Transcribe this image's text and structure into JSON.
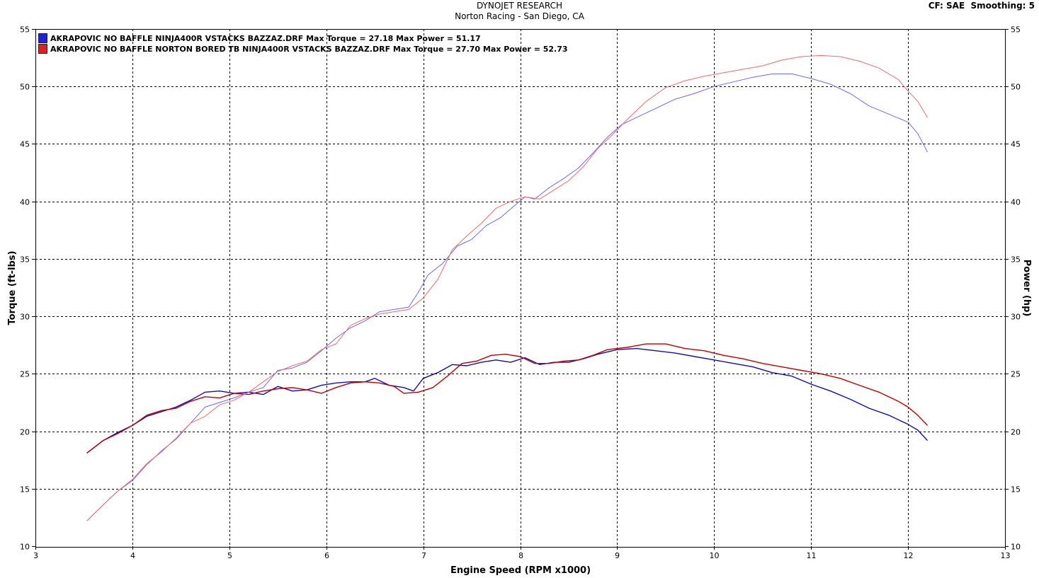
{
  "header": {
    "title": "DYNOJET RESEARCH",
    "subtitle": "Norton Racing - San Diego, CA",
    "settings": "CF: SAE  Smoothing: 5"
  },
  "chart_data": {
    "type": "line",
    "xlabel": "Engine Speed (RPM x1000)",
    "ylabel_left": "Torque (ft-lbs)",
    "ylabel_right": "Power (hp)",
    "xlim": [
      3,
      13
    ],
    "ylim": [
      10,
      55
    ],
    "x_ticks": [
      "3",
      "4",
      "5",
      "6",
      "7",
      "8",
      "9",
      "10",
      "11",
      "12",
      "13"
    ],
    "y_ticks": [
      "10",
      "15",
      "20",
      "25",
      "30",
      "35",
      "40",
      "45",
      "50",
      "55"
    ],
    "grid": true,
    "legend_position": "top-left",
    "legend": [
      {
        "name": "AKRAPOVIC NO BAFFLE NINJA400R VSTACKS BAZZAZ.DRF Max Torque = 27.18 Max Power = 51.17",
        "color": "#2020e0"
      },
      {
        "name": "AKRAPOVIC NO BAFFLE NORTON BORED TB NINJA400R VSTACKS BAZZAZ.DRF Max Torque = 27.70 Max Power = 52.73",
        "color": "#e02020"
      }
    ],
    "series": [
      {
        "name": "AKRAPOVIC NO BAFFLE NINJA400R VSTACKS BAZZAZ.DRF",
        "measure": "Torque",
        "color": "#1010b0",
        "x": [
          3.53,
          3.7,
          3.85,
          4.0,
          4.15,
          4.3,
          4.45,
          4.6,
          4.75,
          4.9,
          5.05,
          5.2,
          5.35,
          5.5,
          5.65,
          5.8,
          5.95,
          6.1,
          6.25,
          6.4,
          6.5,
          6.65,
          6.8,
          6.9,
          7.0,
          7.15,
          7.3,
          7.45,
          7.6,
          7.75,
          7.9,
          8.05,
          8.2,
          8.35,
          8.5,
          8.65,
          8.8,
          9.0,
          9.2,
          9.4,
          9.6,
          9.8,
          10.0,
          10.2,
          10.4,
          10.6,
          10.8,
          11.0,
          11.2,
          11.4,
          11.6,
          11.8,
          12.0,
          12.1,
          12.2
        ],
        "y": [
          18.1,
          19.2,
          19.9,
          20.5,
          21.3,
          21.7,
          22.1,
          22.7,
          23.4,
          23.5,
          23.3,
          23.4,
          23.2,
          23.9,
          23.5,
          23.6,
          24.0,
          24.2,
          24.3,
          24.3,
          24.6,
          24.0,
          23.8,
          23.5,
          24.6,
          25.1,
          25.8,
          25.7,
          26.0,
          26.2,
          26.0,
          26.4,
          25.8,
          26.0,
          26.0,
          26.3,
          26.7,
          27.1,
          27.2,
          27.0,
          26.8,
          26.5,
          26.2,
          25.9,
          25.6,
          25.1,
          24.8,
          24.1,
          23.5,
          22.8,
          22.0,
          21.4,
          20.6,
          20.1,
          19.2
        ]
      },
      {
        "name": "AKRAPOVIC NO BAFFLE NORTON BORED TB NINJA400R VSTACKS BAZZAZ.DRF",
        "measure": "Torque",
        "color": "#c00000",
        "x": [
          3.53,
          3.7,
          3.85,
          4.0,
          4.15,
          4.3,
          4.45,
          4.6,
          4.75,
          4.9,
          5.05,
          5.2,
          5.35,
          5.5,
          5.65,
          5.8,
          5.95,
          6.1,
          6.25,
          6.4,
          6.55,
          6.7,
          6.8,
          6.95,
          7.1,
          7.25,
          7.4,
          7.55,
          7.7,
          7.85,
          8.0,
          8.15,
          8.3,
          8.45,
          8.6,
          8.75,
          8.9,
          9.1,
          9.3,
          9.5,
          9.7,
          9.9,
          10.1,
          10.3,
          10.5,
          10.7,
          10.9,
          11.1,
          11.3,
          11.5,
          11.7,
          11.9,
          12.0,
          12.1,
          12.2
        ],
        "y": [
          18.1,
          19.2,
          19.8,
          20.5,
          21.4,
          21.8,
          22.0,
          22.6,
          23.0,
          22.9,
          23.3,
          23.2,
          23.5,
          23.7,
          23.8,
          23.6,
          23.3,
          23.8,
          24.2,
          24.3,
          24.2,
          23.9,
          23.3,
          23.4,
          23.8,
          24.8,
          25.9,
          26.1,
          26.6,
          26.7,
          26.5,
          25.9,
          25.9,
          26.1,
          26.2,
          26.6,
          27.1,
          27.3,
          27.6,
          27.6,
          27.2,
          27.0,
          26.6,
          26.3,
          25.9,
          25.6,
          25.3,
          25.0,
          24.6,
          24.0,
          23.4,
          22.6,
          22.1,
          21.4,
          20.5
        ]
      },
      {
        "name": "AKRAPOVIC NO BAFFLE NINJA400R VSTACKS BAZZAZ.DRF",
        "measure": "Power",
        "color": "#6a6af0",
        "x": [
          3.53,
          3.7,
          3.85,
          4.0,
          4.15,
          4.3,
          4.45,
          4.6,
          4.75,
          4.9,
          5.05,
          5.2,
          5.35,
          5.5,
          5.65,
          5.8,
          5.95,
          6.1,
          6.25,
          6.4,
          6.55,
          6.7,
          6.85,
          6.95,
          7.05,
          7.2,
          7.35,
          7.5,
          7.65,
          7.8,
          7.95,
          8.05,
          8.15,
          8.3,
          8.45,
          8.6,
          8.75,
          8.9,
          9.05,
          9.2,
          9.4,
          9.6,
          9.8,
          10.0,
          10.2,
          10.4,
          10.6,
          10.8,
          11.0,
          11.2,
          11.4,
          11.6,
          11.8,
          12.0,
          12.1,
          12.2
        ],
        "y": [
          12.2,
          13.6,
          14.8,
          15.7,
          17.1,
          18.3,
          19.3,
          20.7,
          22.1,
          22.5,
          22.9,
          23.4,
          23.8,
          25.3,
          25.5,
          26.0,
          27.0,
          28.1,
          29.0,
          29.6,
          30.4,
          30.6,
          30.8,
          32.1,
          33.6,
          34.6,
          36.1,
          36.7,
          37.9,
          38.6,
          39.7,
          40.4,
          40.2,
          41.2,
          42.0,
          42.9,
          44.2,
          45.6,
          46.7,
          47.3,
          48.1,
          48.9,
          49.4,
          50.0,
          50.4,
          50.8,
          51.1,
          51.1,
          50.7,
          50.2,
          49.4,
          48.3,
          47.6,
          46.9,
          45.9,
          44.3
        ]
      },
      {
        "name": "AKRAPOVIC NO BAFFLE NORTON BORED TB NINJA400R VSTACKS BAZZAZ.DRF",
        "measure": "Power",
        "color": "#f06a6a",
        "x": [
          3.53,
          3.7,
          3.85,
          4.0,
          4.15,
          4.3,
          4.45,
          4.6,
          4.75,
          4.9,
          5.05,
          5.2,
          5.35,
          5.5,
          5.65,
          5.8,
          5.95,
          6.1,
          6.25,
          6.4,
          6.55,
          6.7,
          6.85,
          7.0,
          7.15,
          7.3,
          7.45,
          7.6,
          7.75,
          7.9,
          8.05,
          8.2,
          8.35,
          8.5,
          8.65,
          8.8,
          8.95,
          9.1,
          9.3,
          9.5,
          9.7,
          9.9,
          10.1,
          10.3,
          10.5,
          10.7,
          10.9,
          11.1,
          11.3,
          11.5,
          11.7,
          11.9,
          12.0,
          12.1,
          12.2
        ],
        "y": [
          12.2,
          13.6,
          14.8,
          15.8,
          17.2,
          18.2,
          19.4,
          20.7,
          21.3,
          22.3,
          22.7,
          23.4,
          24.3,
          25.2,
          25.7,
          26.1,
          27.1,
          27.6,
          29.2,
          29.8,
          30.2,
          30.4,
          30.6,
          31.6,
          33.2,
          35.8,
          37.0,
          38.1,
          39.4,
          40.0,
          40.4,
          40.2,
          41.0,
          41.8,
          43.0,
          44.6,
          45.8,
          47.1,
          48.7,
          49.9,
          50.5,
          50.9,
          51.2,
          51.5,
          51.8,
          52.3,
          52.6,
          52.7,
          52.6,
          52.2,
          51.6,
          50.6,
          49.6,
          48.7,
          47.3
        ]
      }
    ]
  }
}
